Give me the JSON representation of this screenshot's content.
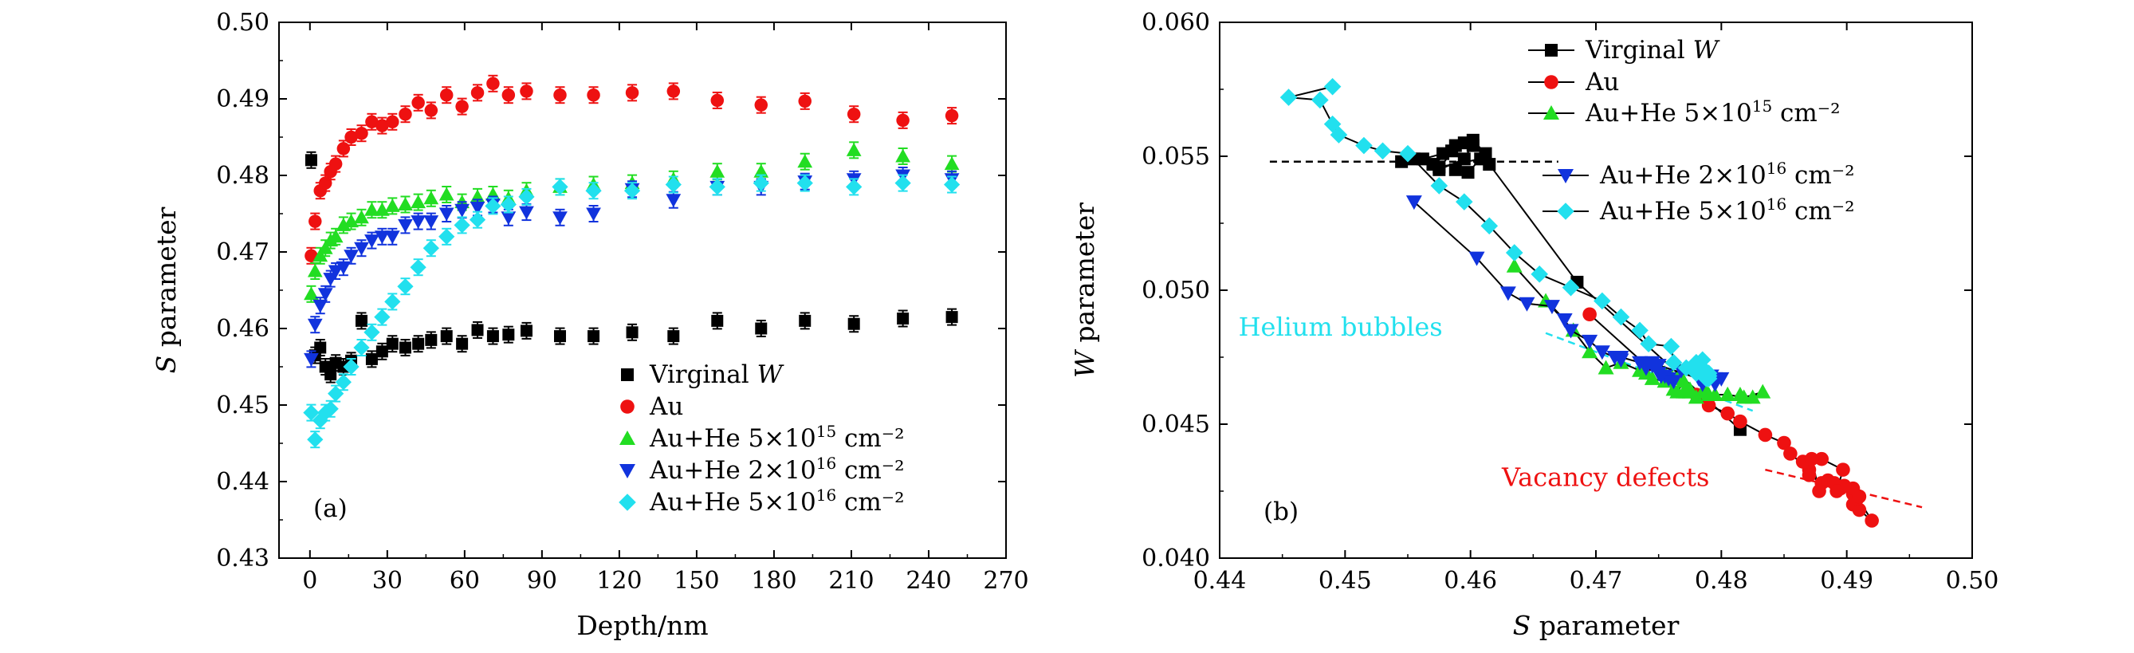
{
  "chart_data": [
    {
      "type": "scatter",
      "panel_label": "(a)",
      "xlabel": "Depth/nm",
      "ylabel_italic": "S",
      "ylabel_rest": " parameter",
      "xlim": [
        -12,
        270
      ],
      "ylim": [
        0.43,
        0.5
      ],
      "xticks": [
        0,
        30,
        60,
        90,
        120,
        150,
        180,
        210,
        240,
        270
      ],
      "yticks": [
        0.43,
        0.44,
        0.45,
        0.46,
        0.47,
        0.48,
        0.49,
        0.5
      ],
      "ytick_labels": [
        "0.43",
        "0.44",
        "0.45",
        "0.46",
        "0.47",
        "0.48",
        "0.49",
        "0.50"
      ],
      "legend_position": "bottom-right",
      "error_bars": true,
      "series": [
        {
          "name": "Virginal W",
          "name_main": "Virginal ",
          "name_italic": "W",
          "name_sup": "",
          "name_tail": "",
          "marker": "square",
          "color": "#000000",
          "x": [
            0.5,
            2,
            4,
            6,
            8,
            10,
            13,
            16,
            20,
            24,
            28,
            32,
            37,
            42,
            47,
            53,
            59,
            65,
            71,
            77,
            84,
            97,
            110,
            125,
            141,
            158,
            175,
            192,
            211,
            230,
            249
          ],
          "y": [
            0.482,
            0.4565,
            0.4575,
            0.455,
            0.454,
            0.4555,
            0.455,
            0.4558,
            0.461,
            0.456,
            0.457,
            0.458,
            0.4575,
            0.458,
            0.4585,
            0.459,
            0.458,
            0.4598,
            0.459,
            0.4592,
            0.4597,
            0.459,
            0.459,
            0.4595,
            0.459,
            0.461,
            0.46,
            0.461,
            0.4606,
            0.4613,
            0.4615
          ]
        },
        {
          "name": "Au",
          "name_main": "Au",
          "name_italic": "",
          "name_sup": "",
          "name_tail": "",
          "marker": "circle",
          "color": "#ee1111",
          "x": [
            0.5,
            2,
            4,
            6,
            8,
            10,
            13,
            16,
            20,
            24,
            28,
            32,
            37,
            42,
            47,
            53,
            59,
            65,
            71,
            77,
            84,
            97,
            110,
            125,
            141,
            158,
            175,
            192,
            211,
            230,
            249
          ],
          "y": [
            0.4695,
            0.474,
            0.478,
            0.479,
            0.4805,
            0.4815,
            0.4835,
            0.485,
            0.4855,
            0.487,
            0.4865,
            0.487,
            0.488,
            0.4895,
            0.4885,
            0.4905,
            0.489,
            0.4908,
            0.492,
            0.4905,
            0.491,
            0.4905,
            0.4905,
            0.4908,
            0.491,
            0.4898,
            0.4892,
            0.4897,
            0.488,
            0.4872,
            0.4878
          ]
        },
        {
          "name": "Au+He 5×10^15 cm^-2",
          "name_main": "Au+He 5×10",
          "name_italic": "",
          "name_sup": "15",
          "name_tail": " cm⁻²",
          "marker": "triangle-up",
          "color": "#22dd22",
          "x": [
            0.5,
            2,
            4,
            6,
            8,
            10,
            13,
            16,
            20,
            24,
            28,
            32,
            37,
            42,
            47,
            53,
            59,
            65,
            71,
            77,
            84,
            97,
            110,
            125,
            141,
            158,
            175,
            192,
            211,
            230,
            249
          ],
          "y": [
            0.4645,
            0.4675,
            0.4695,
            0.4705,
            0.4715,
            0.472,
            0.4735,
            0.474,
            0.4745,
            0.4755,
            0.4755,
            0.476,
            0.4762,
            0.4765,
            0.477,
            0.4775,
            0.4765,
            0.4772,
            0.4775,
            0.477,
            0.478,
            0.4785,
            0.4788,
            0.479,
            0.4795,
            0.4805,
            0.4805,
            0.4818,
            0.4833,
            0.4825,
            0.4815
          ]
        },
        {
          "name": "Au+He 2×10^16 cm^-2",
          "name_main": "Au+He 2×10",
          "name_italic": "",
          "name_sup": "16",
          "name_tail": " cm⁻²",
          "marker": "triangle-down",
          "color": "#1133dd",
          "x": [
            0.5,
            2,
            4,
            6,
            8,
            10,
            13,
            16,
            20,
            24,
            28,
            32,
            37,
            42,
            47,
            53,
            59,
            65,
            71,
            77,
            84,
            97,
            110,
            125,
            141,
            158,
            175,
            192,
            211,
            230,
            249
          ],
          "y": [
            0.456,
            0.4605,
            0.463,
            0.4645,
            0.4665,
            0.4675,
            0.468,
            0.4695,
            0.4705,
            0.4715,
            0.472,
            0.472,
            0.4735,
            0.474,
            0.474,
            0.475,
            0.4755,
            0.4758,
            0.4762,
            0.4745,
            0.4752,
            0.4745,
            0.475,
            0.4782,
            0.4768,
            0.4785,
            0.4785,
            0.4792,
            0.4795,
            0.48,
            0.4795
          ]
        },
        {
          "name": "Au+He 5×10^16 cm^-2",
          "name_main": "Au+He 5×10",
          "name_italic": "",
          "name_sup": "16",
          "name_tail": " cm⁻²",
          "marker": "diamond",
          "color": "#22e0ee",
          "x": [
            0.5,
            2,
            4,
            6,
            8,
            10,
            13,
            16,
            20,
            24,
            28,
            32,
            37,
            42,
            47,
            53,
            59,
            65,
            71,
            77,
            84,
            97,
            110,
            125,
            141,
            158,
            175,
            192,
            211,
            230,
            249
          ],
          "y": [
            0.449,
            0.4455,
            0.448,
            0.449,
            0.4495,
            0.4515,
            0.453,
            0.455,
            0.4575,
            0.4595,
            0.4615,
            0.4635,
            0.4655,
            0.468,
            0.4705,
            0.472,
            0.4735,
            0.4742,
            0.476,
            0.4762,
            0.4772,
            0.4785,
            0.478,
            0.478,
            0.4788,
            0.4785,
            0.479,
            0.479,
            0.4785,
            0.479,
            0.4788
          ]
        }
      ]
    },
    {
      "type": "line",
      "panel_label": "(b)",
      "xlabel_italic": "S",
      "xlabel_rest": " parameter",
      "ylabel_italic": "W",
      "ylabel_rest": " parameter",
      "xlim": [
        0.44,
        0.5
      ],
      "ylim": [
        0.04,
        0.06
      ],
      "xticks": [
        0.44,
        0.45,
        0.46,
        0.47,
        0.48,
        0.49,
        0.5
      ],
      "xtick_labels": [
        "0.44",
        "0.45",
        "0.46",
        "0.47",
        "0.48",
        "0.49",
        "0.50"
      ],
      "yticks": [
        0.04,
        0.045,
        0.05,
        0.055,
        0.06
      ],
      "ytick_labels": [
        "0.040",
        "0.045",
        "0.050",
        "0.055",
        "0.060"
      ],
      "legend_position": "top-right",
      "annotations": [
        {
          "text": "Helium bubbles",
          "color": "#22e0ee",
          "x": 0.4415,
          "y": 0.0483,
          "line": [
            [
              0.466,
              0.0484
            ],
            [
              0.4825,
              0.0455
            ]
          ]
        },
        {
          "text": "Vacancy defects",
          "color": "#ee1111",
          "x": 0.4625,
          "y": 0.0427,
          "line": [
            [
              0.4835,
              0.0433
            ],
            [
              0.496,
              0.0419
            ]
          ]
        },
        {
          "text": "",
          "color": "#000000",
          "x": 0,
          "y": 0,
          "line": [
            [
              0.444,
              0.0548
            ],
            [
              0.467,
              0.0548
            ]
          ]
        }
      ],
      "series": [
        {
          "name": "Virginal W",
          "name_main": "Virginal ",
          "name_italic": "W",
          "name_sup": "",
          "name_tail": "",
          "marker": "square",
          "color": "#000000",
          "x": [
            0.4545,
            0.4555,
            0.457,
            0.4585,
            0.4595,
            0.4575,
            0.4588,
            0.4602,
            0.4612,
            0.4598,
            0.4588,
            0.4602,
            0.4595,
            0.4578,
            0.4562,
            0.4575,
            0.4608,
            0.4615,
            0.4685,
            0.4815
          ],
          "y": [
            0.0548,
            0.0549,
            0.0547,
            0.0552,
            0.0549,
            0.0545,
            0.0554,
            0.0556,
            0.0551,
            0.0544,
            0.0545,
            0.0554,
            0.0555,
            0.0551,
            0.0549,
            0.0546,
            0.0549,
            0.0547,
            0.0503,
            0.0448
          ]
        },
        {
          "name": "Au",
          "name_main": "Au",
          "name_italic": "",
          "name_sup": "",
          "name_tail": "",
          "marker": "circle",
          "color": "#ee1111",
          "x": [
            0.4695,
            0.474,
            0.478,
            0.479,
            0.4805,
            0.4815,
            0.4835,
            0.485,
            0.4855,
            0.487,
            0.4865,
            0.487,
            0.488,
            0.4895,
            0.4885,
            0.4905,
            0.489,
            0.4908,
            0.492,
            0.4905,
            0.491,
            0.4905,
            0.4905,
            0.4908,
            0.491,
            0.4898,
            0.4892,
            0.4897,
            0.488,
            0.4872,
            0.4878
          ],
          "y": [
            0.0491,
            0.0472,
            0.0461,
            0.0457,
            0.0454,
            0.0451,
            0.0446,
            0.0443,
            0.0439,
            0.0433,
            0.0436,
            0.0431,
            0.0428,
            0.0426,
            0.0429,
            0.0424,
            0.0428,
            0.0423,
            0.0414,
            0.042,
            0.0418,
            0.0424,
            0.0426,
            0.0422,
            0.0423,
            0.0427,
            0.0425,
            0.0433,
            0.0437,
            0.0437,
            0.0425
          ]
        },
        {
          "name": "Au+He 5×10^15 cm^-2",
          "name_main": "Au+He 5×10",
          "name_italic": "",
          "name_sup": "15",
          "name_tail": " cm⁻²",
          "marker": "triangle-up",
          "color": "#22dd22",
          "x": [
            0.4635,
            0.466,
            0.4682,
            0.4695,
            0.4708,
            0.472,
            0.4735,
            0.474,
            0.4745,
            0.4755,
            0.4755,
            0.476,
            0.4762,
            0.4765,
            0.477,
            0.4775,
            0.4765,
            0.4772,
            0.4775,
            0.477,
            0.478,
            0.4785,
            0.4788,
            0.479,
            0.4795,
            0.4805,
            0.4805,
            0.4818,
            0.4833,
            0.4825,
            0.4815
          ],
          "y": [
            0.0509,
            0.0496,
            0.0485,
            0.0477,
            0.0471,
            0.0473,
            0.047,
            0.0469,
            0.0467,
            0.0466,
            0.0469,
            0.0468,
            0.0463,
            0.0462,
            0.0466,
            0.0462,
            0.0467,
            0.0462,
            0.0463,
            0.0462,
            0.046,
            0.0462,
            0.0462,
            0.0461,
            0.0461,
            0.0461,
            0.0461,
            0.046,
            0.0462,
            0.046,
            0.0461
          ]
        },
        {
          "name": "Au+He 2×10^16 cm^-2",
          "name_main": "Au+He 2×10",
          "name_italic": "",
          "name_sup": "16",
          "name_tail": " cm⁻²",
          "marker": "triangle-down",
          "color": "#1133dd",
          "x": [
            0.4555,
            0.4605,
            0.463,
            0.4645,
            0.4665,
            0.4675,
            0.468,
            0.4695,
            0.4705,
            0.4715,
            0.472,
            0.472,
            0.4735,
            0.474,
            0.474,
            0.475,
            0.4755,
            0.4758,
            0.4762,
            0.4745,
            0.4752,
            0.4745,
            0.475,
            0.4782,
            0.4768,
            0.4785,
            0.4785,
            0.4792,
            0.4795,
            0.48,
            0.4795
          ],
          "y": [
            0.0533,
            0.0512,
            0.0499,
            0.0495,
            0.0494,
            0.0489,
            0.0485,
            0.0481,
            0.0477,
            0.0475,
            0.0474,
            0.0475,
            0.0473,
            0.0472,
            0.0471,
            0.0469,
            0.0468,
            0.0467,
            0.0466,
            0.0472,
            0.0468,
            0.0473,
            0.0472,
            0.0467,
            0.047,
            0.0466,
            0.0465,
            0.0468,
            0.0467,
            0.0467,
            0.0465
          ]
        },
        {
          "name": "Au+He 5×10^16 cm^-2",
          "name_main": "Au+He 5×10",
          "name_italic": "",
          "name_sup": "16",
          "name_tail": " cm⁻²",
          "marker": "diamond",
          "color": "#22e0ee",
          "x": [
            0.449,
            0.4455,
            0.448,
            0.449,
            0.4495,
            0.4515,
            0.453,
            0.455,
            0.4575,
            0.4595,
            0.4615,
            0.4635,
            0.4655,
            0.468,
            0.4705,
            0.472,
            0.4735,
            0.4742,
            0.476,
            0.4762,
            0.4772,
            0.4785,
            0.478,
            0.478,
            0.4788,
            0.4785,
            0.479,
            0.479,
            0.4785,
            0.479,
            0.4788
          ],
          "y": [
            0.0576,
            0.0572,
            0.0571,
            0.0562,
            0.0558,
            0.0554,
            0.0552,
            0.0551,
            0.0539,
            0.0533,
            0.0524,
            0.0514,
            0.0506,
            0.0501,
            0.0496,
            0.049,
            0.0485,
            0.048,
            0.0479,
            0.0473,
            0.0471,
            0.0474,
            0.0469,
            0.0473,
            0.0467,
            0.047,
            0.0467,
            0.0469,
            0.0471,
            0.0468,
            0.0468
          ]
        }
      ]
    }
  ]
}
